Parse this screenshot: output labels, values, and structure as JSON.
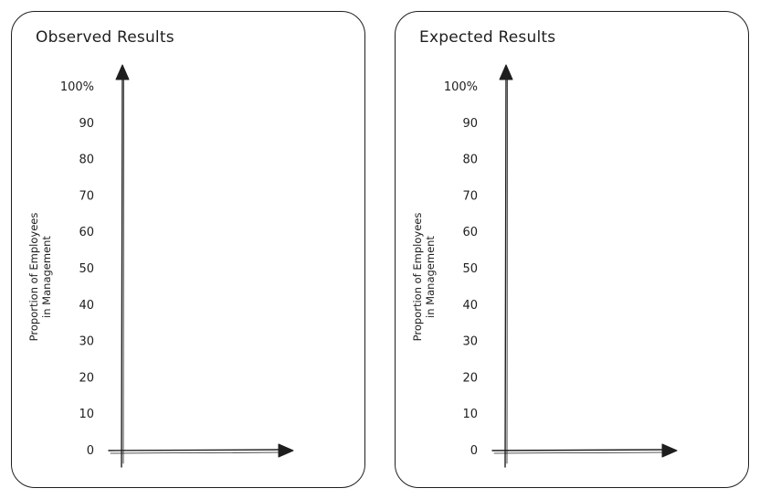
{
  "chart_data": [
    {
      "type": "bar",
      "title": "Observed Results",
      "xlabel": "",
      "ylabel_lines": [
        "Proportion of Employees",
        "in Management"
      ],
      "ylim": [
        0,
        100
      ],
      "yticks": [
        {
          "value": 0,
          "label": "0"
        },
        {
          "value": 10,
          "label": "10"
        },
        {
          "value": 20,
          "label": "20"
        },
        {
          "value": 30,
          "label": "30"
        },
        {
          "value": 40,
          "label": "40"
        },
        {
          "value": 50,
          "label": "50"
        },
        {
          "value": 60,
          "label": "60"
        },
        {
          "value": 70,
          "label": "70"
        },
        {
          "value": 80,
          "label": "80"
        },
        {
          "value": 90,
          "label": "90"
        },
        {
          "value": 100,
          "label": "100%"
        }
      ],
      "categories": [],
      "series": [],
      "grid": false
    },
    {
      "type": "bar",
      "title": "Expected Results",
      "xlabel": "",
      "ylabel_lines": [
        "Proportion of Employees",
        "in Management"
      ],
      "ylim": [
        0,
        100
      ],
      "yticks": [
        {
          "value": 0,
          "label": "0"
        },
        {
          "value": 10,
          "label": "10"
        },
        {
          "value": 20,
          "label": "20"
        },
        {
          "value": 30,
          "label": "30"
        },
        {
          "value": 40,
          "label": "40"
        },
        {
          "value": 50,
          "label": "50"
        },
        {
          "value": 60,
          "label": "60"
        },
        {
          "value": 70,
          "label": "70"
        },
        {
          "value": 80,
          "label": "80"
        },
        {
          "value": 90,
          "label": "90"
        },
        {
          "value": 100,
          "label": "100%"
        }
      ],
      "categories": [],
      "series": [],
      "grid": false
    }
  ],
  "colors": {
    "ink": "#1e1e1e",
    "background": "#ffffff"
  }
}
